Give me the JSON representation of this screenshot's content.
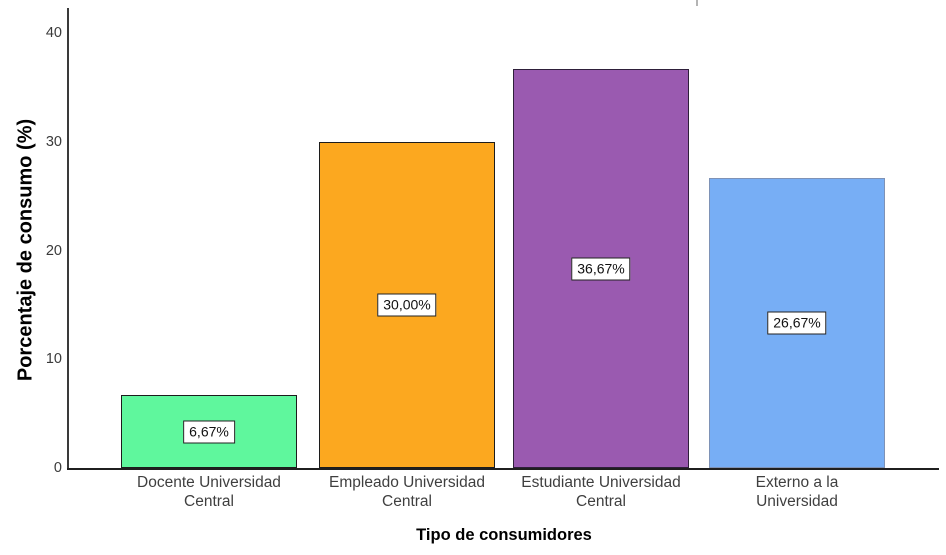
{
  "chart_data": {
    "type": "bar",
    "title": "",
    "xlabel": "Tipo de consumidores",
    "ylabel": "Porcentaje de consumo (%)",
    "categories": [
      "Docente Universidad Central",
      "Empleado Universidad Central",
      "Estudiante Universidad Central",
      "Externo a la Universidad"
    ],
    "category_label_lines": [
      [
        "Docente Universidad",
        "Central"
      ],
      [
        "Empleado Universidad",
        "Central"
      ],
      [
        "Estudiante Universidad",
        "Central"
      ],
      [
        "Externo a la",
        "Universidad"
      ]
    ],
    "values": [
      6.67,
      30.0,
      36.67,
      26.67
    ],
    "value_labels": [
      "6,67%",
      "30,00%",
      "36,67%",
      "26,67%"
    ],
    "bar_colors": [
      "#5ff79d",
      "#fca81f",
      "#9a5ab0",
      "#77aef5"
    ],
    "bar_border_colors": [
      "#1c1c1c",
      "#1c1c1c",
      "#2e1f3a",
      "#7e92b6"
    ],
    "yticks": [
      0,
      10,
      20,
      30,
      40
    ],
    "y_tick_labels": [
      "0",
      "10",
      "20",
      "30",
      "40"
    ],
    "ylim": [
      0,
      42.3
    ],
    "grid": false,
    "legend": "none"
  }
}
